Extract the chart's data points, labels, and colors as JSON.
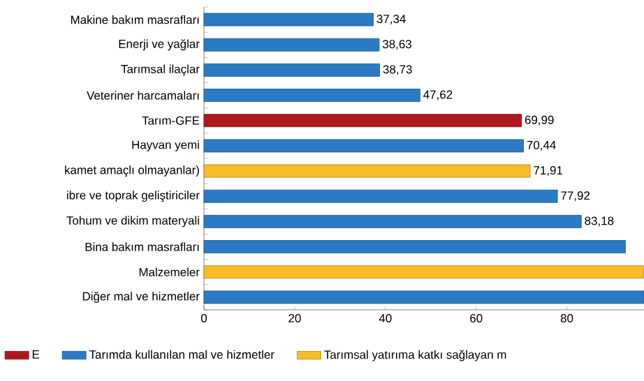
{
  "chart_data": {
    "type": "bar",
    "orientation": "horizontal",
    "categories": [
      "Makine bakım masrafları",
      "Enerji ve yağlar",
      "Tarımsal ilaçlar",
      "Veteriner harcamaları",
      "Tarım-GFE",
      "Hayvan yemi",
      "kamet amaçlı olmayanlar)",
      "ibre ve toprak geliştiriciler",
      "Tohum ve dikim materyali",
      "Bina bakım masrafları",
      "Malzemeler",
      "Diğer mal ve hizmetler"
    ],
    "series": [
      {
        "name": "E",
        "color": "#b0181e",
        "values": [
          null,
          null,
          null,
          null,
          69.99,
          null,
          null,
          null,
          null,
          null,
          null,
          null
        ],
        "value_labels": [
          null,
          null,
          null,
          null,
          "69,99",
          null,
          null,
          null,
          null,
          null,
          null,
          null
        ]
      },
      {
        "name": "Tarımda kullanılan mal ve hizmetler",
        "color": "#2a7bc4",
        "values": [
          37.34,
          38.63,
          38.73,
          47.62,
          null,
          70.44,
          null,
          77.92,
          83.18,
          92.9,
          null,
          97
        ],
        "value_labels": [
          "37,34",
          "38,63",
          "38,73",
          "47,62",
          null,
          "70,44",
          null,
          "77,92",
          "83,18",
          null,
          null,
          null
        ]
      },
      {
        "name": "Tarımsal yatırıma katkı sağlayan m",
        "color": "#f8bc2a",
        "values": [
          null,
          null,
          null,
          null,
          null,
          null,
          71.91,
          null,
          null,
          null,
          96.9,
          null
        ],
        "value_labels": [
          null,
          null,
          null,
          null,
          null,
          null,
          "71,91",
          null,
          null,
          null,
          null,
          null
        ]
      }
    ],
    "xlim": [
      0,
      97
    ],
    "xticks": [
      0,
      20,
      40,
      60,
      80
    ],
    "legend": "bottom"
  }
}
